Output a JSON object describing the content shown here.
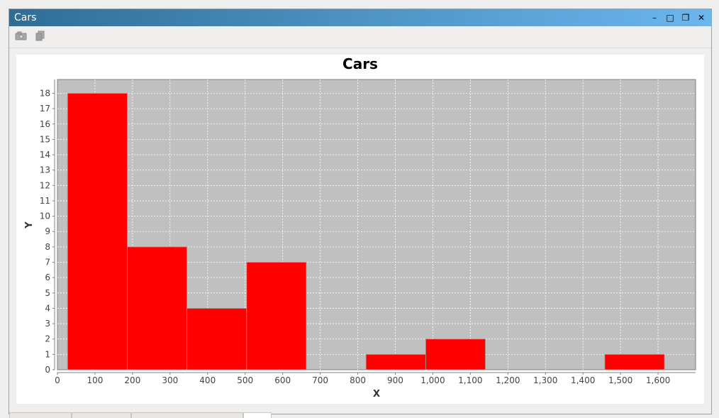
{
  "window": {
    "title": "Cars",
    "controls": [
      {
        "name": "minimize-icon",
        "glyph": "–"
      },
      {
        "name": "maximize-icon",
        "glyph": "□"
      },
      {
        "name": "restore-icon",
        "glyph": "❐"
      },
      {
        "name": "close-icon",
        "glyph": "✕"
      }
    ]
  },
  "toolbar": {
    "buttons": [
      {
        "name": "save-image-icon"
      },
      {
        "name": "copy-icon"
      }
    ]
  },
  "chart_data": {
    "type": "bar",
    "title": "Cars",
    "xlabel": "X",
    "ylabel": "Y",
    "xlim": [
      0,
      1700
    ],
    "ylim": [
      0,
      18.9
    ],
    "x_ticks": [
      0,
      100,
      200,
      300,
      400,
      500,
      600,
      700,
      800,
      900,
      1000,
      1100,
      1200,
      1300,
      1400,
      1500,
      1600
    ],
    "x_tick_labels": [
      "0",
      "100",
      "200",
      "300",
      "400",
      "500",
      "600",
      "700",
      "800",
      "900",
      "1,000",
      "1,100",
      "1,200",
      "1,300",
      "1,400",
      "1,500",
      "1,600"
    ],
    "y_ticks": [
      0,
      1,
      2,
      3,
      4,
      5,
      6,
      7,
      8,
      9,
      10,
      11,
      12,
      13,
      14,
      15,
      16,
      17,
      18
    ],
    "bins": [
      {
        "start": 27,
        "end": 186,
        "value": 18
      },
      {
        "start": 186,
        "end": 345,
        "value": 8
      },
      {
        "start": 345,
        "end": 504,
        "value": 4
      },
      {
        "start": 504,
        "end": 663,
        "value": 7
      },
      {
        "start": 663,
        "end": 822,
        "value": 0
      },
      {
        "start": 822,
        "end": 981,
        "value": 1
      },
      {
        "start": 981,
        "end": 1140,
        "value": 2
      },
      {
        "start": 1140,
        "end": 1299,
        "value": 0
      },
      {
        "start": 1299,
        "end": 1458,
        "value": 0
      },
      {
        "start": 1458,
        "end": 1617,
        "value": 1
      }
    ],
    "grid": true,
    "colors": {
      "bar": "#ff0000",
      "plot_background": "#c0c0c0",
      "grid": "#ffffff"
    }
  }
}
